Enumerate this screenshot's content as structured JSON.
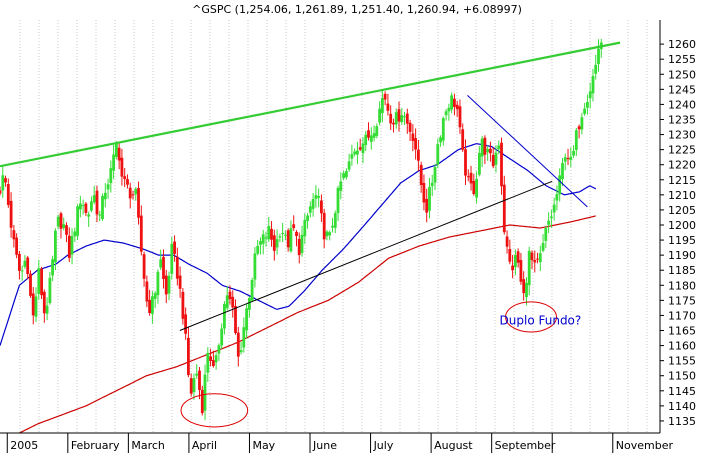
{
  "chart_data": {
    "type": "bar",
    "title": "^GSPC (1,254.06, 1,261.89, 1,251.40, 1,260.94, +6.08997)",
    "ylim": [
      1131,
      1268
    ],
    "y_ticks": [
      1135,
      1140,
      1145,
      1150,
      1155,
      1160,
      1165,
      1170,
      1175,
      1180,
      1185,
      1190,
      1195,
      1200,
      1205,
      1210,
      1215,
      1220,
      1225,
      1230,
      1235,
      1240,
      1245,
      1250,
      1255,
      1260
    ],
    "y_axis_position": "right",
    "grid": "dotted-vertical",
    "x_labels": [
      "2005",
      "February",
      "March",
      "April",
      "May",
      "June",
      "July",
      "August",
      "September",
      "November"
    ],
    "x_label_month_index": [
      0,
      1,
      2,
      3,
      4,
      5,
      6,
      7,
      8,
      10
    ],
    "month_range": [
      -0.12,
      10.78
    ],
    "colors": {
      "up": "#33dd33",
      "down": "#ee1111",
      "ma_short": "#0000cc",
      "ma_long": "#cc0000",
      "trend_upper": "#33cc33",
      "trend_lower": "#000000",
      "ellipse": "#dd0000",
      "annotation": "#0000cc"
    },
    "price_knots": [
      [
        -0.12,
        1212
      ],
      [
        -0.05,
        1217
      ],
      [
        0.03,
        1205
      ],
      [
        0.12,
        1192
      ],
      [
        0.22,
        1183
      ],
      [
        0.32,
        1190
      ],
      [
        0.42,
        1168
      ],
      [
        0.52,
        1184
      ],
      [
        0.62,
        1170
      ],
      [
        0.72,
        1182
      ],
      [
        0.82,
        1201
      ],
      [
        0.92,
        1201
      ],
      [
        1.02,
        1190
      ],
      [
        1.12,
        1200
      ],
      [
        1.22,
        1210
      ],
      [
        1.32,
        1202
      ],
      [
        1.42,
        1211
      ],
      [
        1.52,
        1202
      ],
      [
        1.62,
        1212
      ],
      [
        1.72,
        1218
      ],
      [
        1.82,
        1228
      ],
      [
        1.9,
        1215
      ],
      [
        2.02,
        1211
      ],
      [
        2.12,
        1210
      ],
      [
        2.22,
        1190
      ],
      [
        2.32,
        1172
      ],
      [
        2.42,
        1175
      ],
      [
        2.52,
        1190
      ],
      [
        2.62,
        1176
      ],
      [
        2.72,
        1192
      ],
      [
        2.82,
        1183
      ],
      [
        2.92,
        1168
      ],
      [
        3.02,
        1143
      ],
      [
        3.12,
        1152
      ],
      [
        3.22,
        1140
      ],
      [
        3.32,
        1160
      ],
      [
        3.42,
        1150
      ],
      [
        3.52,
        1165
      ],
      [
        3.62,
        1178
      ],
      [
        3.72,
        1172
      ],
      [
        3.82,
        1155
      ],
      [
        3.92,
        1168
      ],
      [
        4.02,
        1180
      ],
      [
        4.12,
        1192
      ],
      [
        4.22,
        1195
      ],
      [
        4.32,
        1198
      ],
      [
        4.42,
        1192
      ],
      [
        4.52,
        1200
      ],
      [
        4.62,
        1193
      ],
      [
        4.72,
        1199
      ],
      [
        4.82,
        1192
      ],
      [
        4.92,
        1200
      ],
      [
        5.02,
        1207
      ],
      [
        5.12,
        1210
      ],
      [
        5.22,
        1198
      ],
      [
        5.32,
        1195
      ],
      [
        5.42,
        1206
      ],
      [
        5.52,
        1215
      ],
      [
        5.62,
        1218
      ],
      [
        5.72,
        1225
      ],
      [
        5.82,
        1227
      ],
      [
        5.92,
        1228
      ],
      [
        6.02,
        1231
      ],
      [
        6.12,
        1236
      ],
      [
        6.22,
        1244
      ],
      [
        6.32,
        1236
      ],
      [
        6.42,
        1235
      ],
      [
        6.52,
        1238
      ],
      [
        6.62,
        1233
      ],
      [
        6.72,
        1229
      ],
      [
        6.82,
        1215
      ],
      [
        6.92,
        1205
      ],
      [
        7.02,
        1215
      ],
      [
        7.12,
        1228
      ],
      [
        7.22,
        1237
      ],
      [
        7.32,
        1242
      ],
      [
        7.42,
        1240
      ],
      [
        7.52,
        1223
      ],
      [
        7.62,
        1213
      ],
      [
        7.72,
        1212
      ],
      [
        7.82,
        1228
      ],
      [
        7.92,
        1224
      ],
      [
        8.02,
        1220
      ],
      [
        8.12,
        1228
      ],
      [
        8.22,
        1195
      ],
      [
        8.32,
        1185
      ],
      [
        8.42,
        1190
      ],
      [
        8.52,
        1175
      ],
      [
        8.62,
        1190
      ],
      [
        8.72,
        1185
      ],
      [
        8.82,
        1190
      ],
      [
        8.92,
        1200
      ],
      [
        9.02,
        1205
      ],
      [
        9.12,
        1214
      ],
      [
        9.22,
        1225
      ],
      [
        9.32,
        1220
      ],
      [
        9.42,
        1232
      ],
      [
        9.52,
        1240
      ],
      [
        9.62,
        1245
      ],
      [
        9.72,
        1253
      ],
      [
        9.78,
        1261
      ],
      [
        9.81,
        1261
      ]
    ],
    "ma_short_knots": [
      [
        -0.12,
        1160
      ],
      [
        0.2,
        1180
      ],
      [
        0.5,
        1185
      ],
      [
        0.8,
        1187
      ],
      [
        1.0,
        1190
      ],
      [
        1.3,
        1193
      ],
      [
        1.6,
        1195
      ],
      [
        1.92,
        1194
      ],
      [
        2.25,
        1192
      ],
      [
        2.5,
        1190
      ],
      [
        2.75,
        1190
      ],
      [
        3.0,
        1187
      ],
      [
        3.3,
        1184
      ],
      [
        3.55,
        1180
      ],
      [
        3.85,
        1178
      ],
      [
        4.15,
        1175
      ],
      [
        4.45,
        1172
      ],
      [
        4.65,
        1173
      ],
      [
        4.9,
        1178
      ],
      [
        5.2,
        1185
      ],
      [
        5.55,
        1192
      ],
      [
        5.9,
        1200
      ],
      [
        6.2,
        1207
      ],
      [
        6.5,
        1214
      ],
      [
        6.8,
        1218
      ],
      [
        7.1,
        1220
      ],
      [
        7.45,
        1225
      ],
      [
        7.75,
        1227
      ],
      [
        8.0,
        1226
      ],
      [
        8.3,
        1222
      ],
      [
        8.6,
        1218
      ],
      [
        8.9,
        1213
      ],
      [
        9.2,
        1210
      ],
      [
        9.45,
        1211
      ],
      [
        9.62,
        1213
      ],
      [
        9.72,
        1212
      ]
    ],
    "ma_long_knots": [
      [
        0.2,
        1131
      ],
      [
        0.5,
        1134
      ],
      [
        0.9,
        1137
      ],
      [
        1.3,
        1140
      ],
      [
        1.8,
        1145
      ],
      [
        2.3,
        1150
      ],
      [
        2.8,
        1153
      ],
      [
        3.3,
        1157
      ],
      [
        3.8,
        1161
      ],
      [
        4.3,
        1166
      ],
      [
        4.8,
        1171
      ],
      [
        5.3,
        1175
      ],
      [
        5.8,
        1181
      ],
      [
        6.3,
        1189
      ],
      [
        6.8,
        1193
      ],
      [
        7.3,
        1196
      ],
      [
        7.8,
        1198
      ],
      [
        8.3,
        1200
      ],
      [
        8.8,
        1199
      ],
      [
        9.3,
        1201
      ],
      [
        9.72,
        1203
      ]
    ],
    "trend_lines": [
      {
        "name": "upper-trend-line",
        "points": [
          [
            -0.12,
            1219.5
          ],
          [
            10.12,
            1260.5
          ]
        ]
      },
      {
        "name": "lower-trend-line",
        "points": [
          [
            2.85,
            1165
          ],
          [
            9.0,
            1214.5
          ]
        ]
      },
      {
        "name": "falling-trend-line",
        "points": [
          [
            7.6,
            1243
          ],
          [
            9.58,
            1206
          ]
        ]
      }
    ],
    "ellipses": [
      {
        "name": "april-bottom-ellipse",
        "center": [
          3.42,
          1138.5
        ],
        "radius": [
          0.55,
          5.5
        ]
      },
      {
        "name": "october-bottom-ellipse",
        "center": [
          8.65,
          1169.5
        ],
        "radius": [
          0.42,
          5
        ]
      }
    ],
    "annotations": [
      {
        "name": "duplo-fundo-label",
        "text": "Duplo Fundo?",
        "at": [
          8.13,
          1167
        ]
      }
    ]
  }
}
